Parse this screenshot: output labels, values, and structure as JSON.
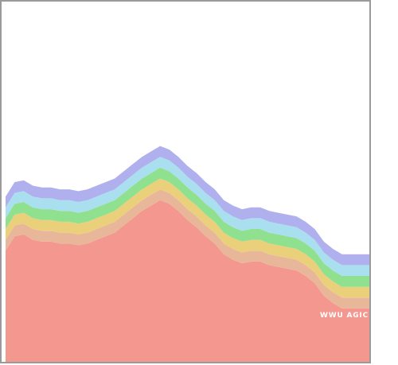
{
  "chart_data": {
    "type": "area",
    "stacked": true,
    "x": [
      0,
      0.025,
      0.05,
      0.075,
      0.1,
      0.125,
      0.15,
      0.175,
      0.2,
      0.225,
      0.25,
      0.275,
      0.3,
      0.325,
      0.35,
      0.375,
      0.4,
      0.425,
      0.45,
      0.475,
      0.5,
      0.525,
      0.55,
      0.575,
      0.6,
      0.625,
      0.65,
      0.675,
      0.7,
      0.725,
      0.75,
      0.775,
      0.8,
      0.825,
      0.85,
      0.875,
      0.9,
      0.925,
      0.95,
      0.975,
      1.0
    ],
    "series": [
      {
        "name": "WWU AGIC",
        "color": "#f4978e",
        "values": [
          62,
          70,
          71,
          68,
          67,
          67,
          66,
          66,
          65,
          66,
          68,
          70,
          72,
          76,
          80,
          84,
          87,
          90,
          88,
          84,
          79,
          75,
          70,
          66,
          60,
          57,
          55,
          56,
          56,
          54,
          53,
          52,
          51,
          48,
          44,
          37,
          33,
          30,
          30,
          30,
          30
        ]
      },
      {
        "name": "",
        "color": "#e8b79a",
        "values": [
          6,
          6,
          6,
          6,
          6,
          6,
          6,
          6,
          6,
          6,
          6,
          6,
          6,
          6,
          6,
          6,
          6,
          6,
          6,
          6,
          6,
          6,
          6,
          6,
          6,
          6,
          6,
          6,
          6,
          6,
          6,
          6,
          6,
          6,
          6,
          6,
          6,
          6,
          6,
          6,
          6
        ]
      },
      {
        "name": "",
        "color": "#ead07a",
        "values": [
          6,
          6,
          6,
          6,
          6,
          6,
          6,
          6,
          6,
          6,
          6,
          6,
          6,
          6,
          6,
          6,
          6,
          6,
          6,
          6,
          6,
          6,
          6,
          6,
          6,
          6,
          6,
          6,
          6,
          6,
          6,
          6,
          6,
          6,
          6,
          6,
          6,
          6,
          6,
          6,
          6
        ]
      },
      {
        "name": "",
        "color": "#8fe08f",
        "values": [
          6,
          6,
          6,
          6,
          6,
          6,
          6,
          6,
          6,
          6,
          6,
          6,
          6,
          6,
          6,
          6,
          6,
          6,
          6,
          6,
          6,
          6,
          6,
          6,
          6,
          6,
          6,
          6,
          6,
          6,
          6,
          6,
          6,
          6,
          6,
          6,
          6,
          6,
          6,
          6,
          6
        ]
      },
      {
        "name": "",
        "color": "#aadff0",
        "values": [
          6,
          6,
          6,
          6,
          6,
          6,
          6,
          6,
          6,
          6,
          6,
          6,
          6,
          6,
          6,
          6,
          6,
          6,
          6,
          6,
          6,
          6,
          6,
          6,
          6,
          6,
          6,
          6,
          6,
          6,
          6,
          6,
          6,
          6,
          6,
          6,
          6,
          6,
          6,
          6,
          6
        ]
      },
      {
        "name": "",
        "color": "#b0b0ee",
        "values": [
          6,
          6,
          6,
          6,
          6,
          6,
          6,
          6,
          6,
          6,
          6,
          6,
          6,
          6,
          6,
          6,
          6,
          6,
          6,
          6,
          6,
          6,
          6,
          6,
          6,
          6,
          6,
          6,
          6,
          6,
          6,
          6,
          6,
          6,
          6,
          6,
          6,
          6,
          6,
          6,
          6
        ]
      }
    ],
    "ylim": [
      0,
      200
    ],
    "grid": false,
    "legend": "none",
    "frame_color": "#9a9a9a"
  }
}
